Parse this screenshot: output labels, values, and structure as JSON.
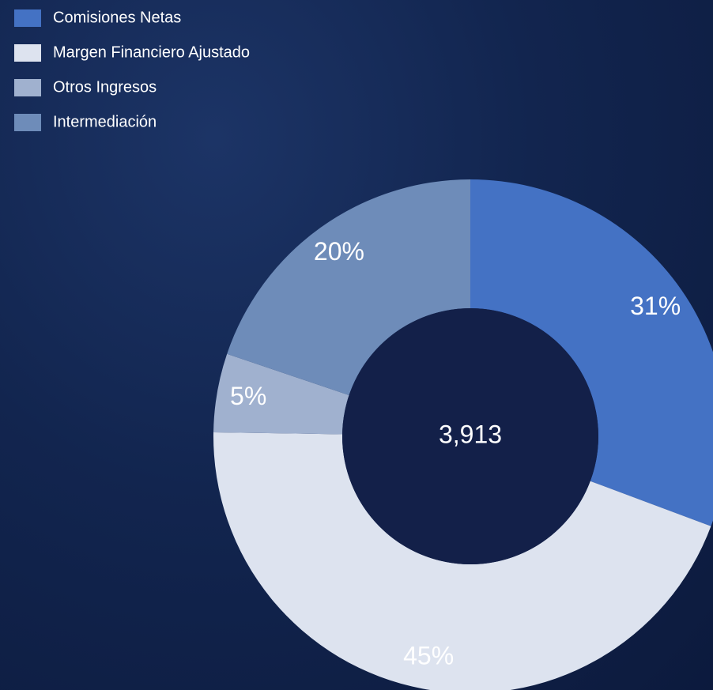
{
  "chart_data": {
    "type": "donut",
    "categories": [
      "Comisiones Netas",
      "Margen Financiero Ajustado",
      "Otros Ingresos",
      "Intermediación"
    ],
    "values": [
      31,
      45,
      5,
      20
    ],
    "value_labels": [
      "31%",
      "45%",
      "5%",
      "20%"
    ],
    "colors": [
      "#4472c4",
      "#dde3ef",
      "#a0b1cf",
      "#6e8cb9"
    ],
    "center_label": "3,913",
    "legend": "top-left"
  }
}
